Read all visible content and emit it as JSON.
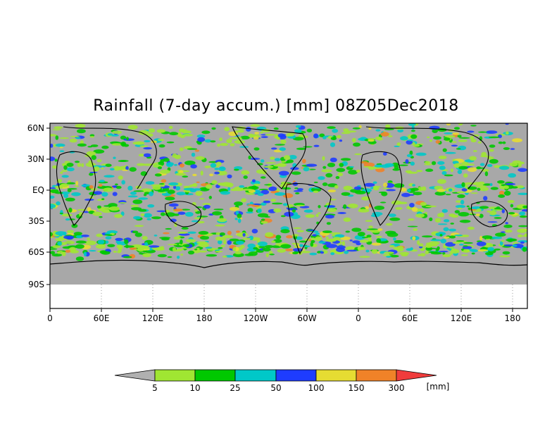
{
  "title": "Rainfall (7-day accum.) [mm] 08Z05Dec2018",
  "lat_ticks": [
    "60N",
    "30N",
    "EQ",
    "30S",
    "60S",
    "90S"
  ],
  "lon_ticks": [
    "0",
    "60E",
    "120E",
    "180",
    "120W",
    "60W",
    "0",
    "60E",
    "120E",
    "180"
  ],
  "legend": {
    "thresholds": [
      "5",
      "10",
      "25",
      "50",
      "100",
      "150",
      "300"
    ],
    "unit": "[mm]",
    "colors": {
      "below": "#b0b0b0",
      "bins": [
        "#a0e632",
        "#00c800",
        "#00c8c8",
        "#1e3cff",
        "#e6dc32",
        "#f08228"
      ],
      "above": "#f03c3c"
    }
  },
  "colors": {
    "ocean": "#a8a8a8",
    "coast": "#000000",
    "plot_border": "#000000",
    "empty_band": "#ffffff"
  }
}
